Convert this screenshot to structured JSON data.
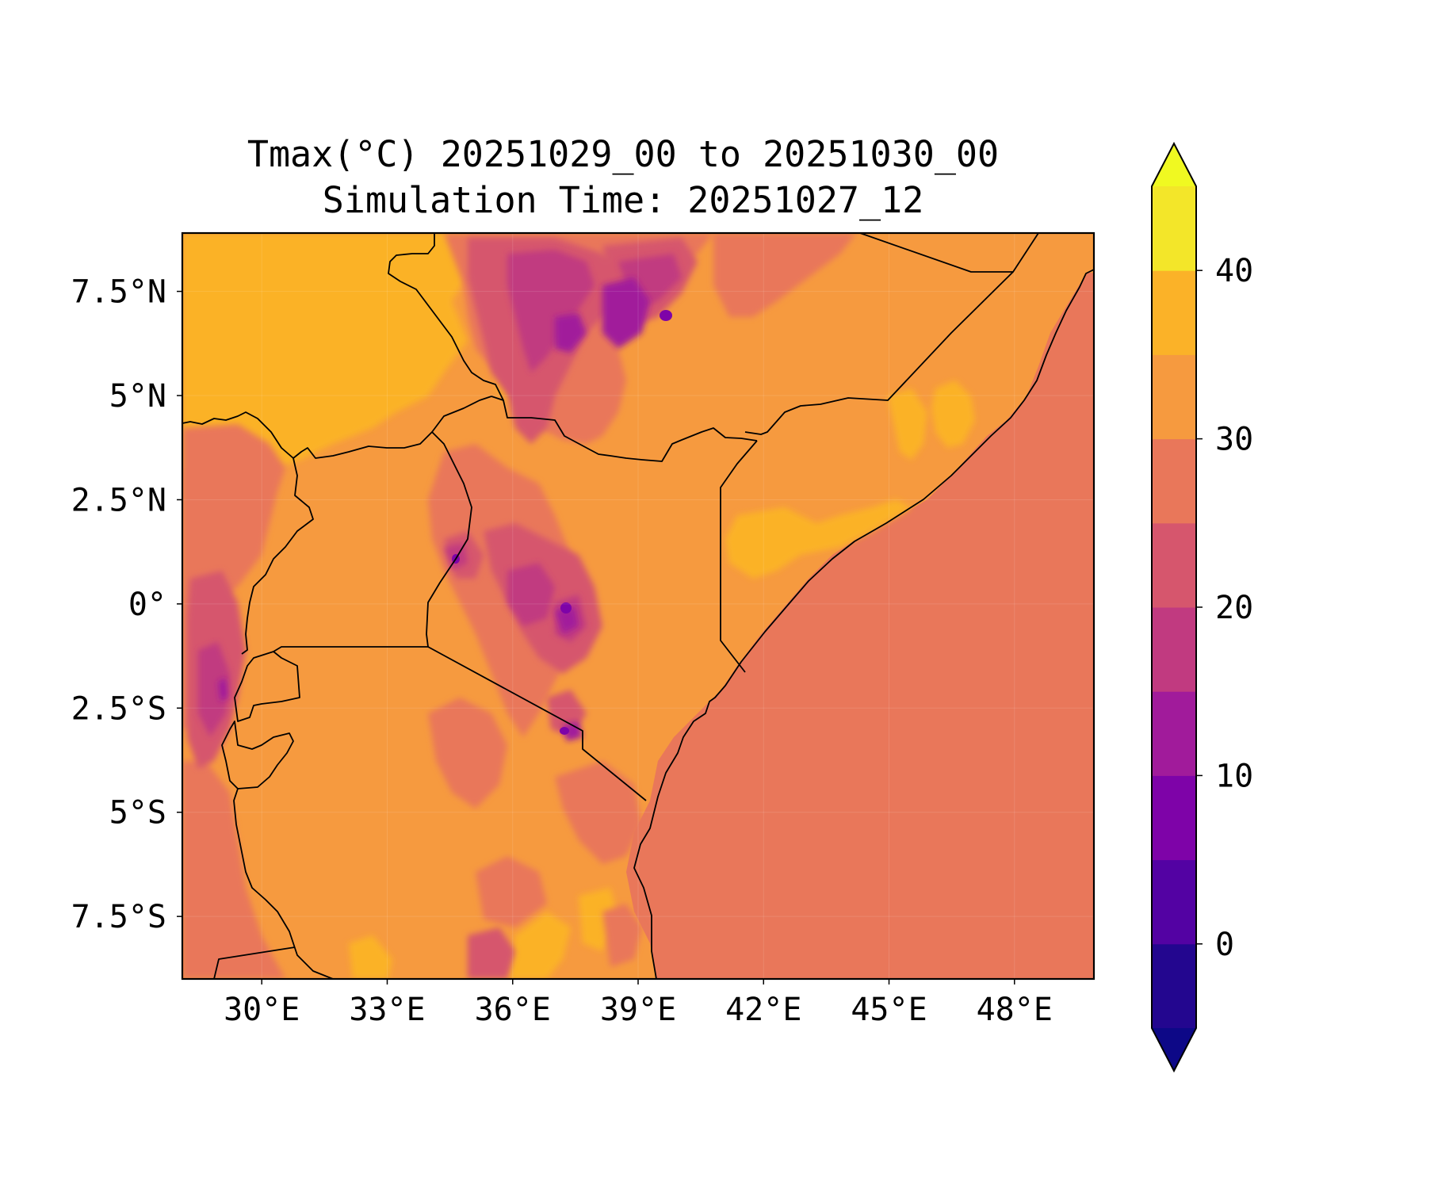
{
  "title": {
    "line1": "Tmax(°C) 20251029_00 to 20251030_00",
    "line2": "Simulation Time: 20251027_12"
  },
  "chart_data": {
    "type": "heatmap",
    "variable": "Tmax(°C)",
    "map_extent": {
      "lon": [
        28.1,
        49.9
      ],
      "lat": [
        -9.0,
        8.9
      ]
    },
    "x_ticks": [
      {
        "value": 30,
        "label": "30°E"
      },
      {
        "value": 33,
        "label": "33°E"
      },
      {
        "value": 36,
        "label": "36°E"
      },
      {
        "value": 39,
        "label": "39°E"
      },
      {
        "value": 42,
        "label": "42°E"
      },
      {
        "value": 45,
        "label": "45°E"
      },
      {
        "value": 48,
        "label": "48°E"
      }
    ],
    "y_ticks": [
      {
        "value": 7.5,
        "label": "7.5°N"
      },
      {
        "value": 5,
        "label": "5°N"
      },
      {
        "value": 2.5,
        "label": "2.5°N"
      },
      {
        "value": 0,
        "label": "0°"
      },
      {
        "value": -2.5,
        "label": "2.5°S"
      },
      {
        "value": -5,
        "label": "5°S"
      },
      {
        "value": -7.5,
        "label": "7.5°S"
      }
    ],
    "colorbar": {
      "range": [
        -5,
        45
      ],
      "levels": [
        -5,
        0,
        5,
        10,
        15,
        20,
        25,
        30,
        35,
        40,
        45
      ],
      "colors": [
        "#23068f",
        "#5302a3",
        "#7e03a8",
        "#a11b9b",
        "#c13a80",
        "#d6566d",
        "#e9775a",
        "#f69a3f",
        "#fbb228",
        "#f3e629"
      ],
      "under_color": "#0d0887",
      "over_color": "#f0f921",
      "extend": "both",
      "ticks": [
        {
          "value": 0,
          "label": "0"
        },
        {
          "value": 10,
          "label": "10"
        },
        {
          "value": 20,
          "label": "20"
        },
        {
          "value": 30,
          "label": "30"
        },
        {
          "value": 40,
          "label": "40"
        }
      ]
    }
  }
}
